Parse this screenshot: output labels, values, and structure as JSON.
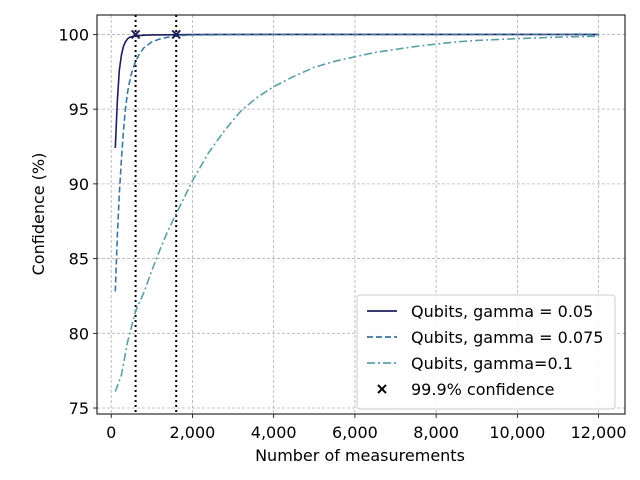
{
  "chart_data": {
    "type": "line",
    "xlabel": "Number of measurements",
    "ylabel": "Confidence (%)",
    "xlim": [
      -350,
      12650
    ],
    "ylim": [
      74.6,
      101.3
    ],
    "xticks": [
      0,
      2000,
      4000,
      6000,
      8000,
      10000,
      12000
    ],
    "xtick_labels": [
      "0",
      "2,000",
      "4,000",
      "6,000",
      "8,000",
      "10,000",
      "12,000"
    ],
    "yticks": [
      75,
      80,
      85,
      90,
      95,
      100
    ],
    "ytick_labels": [
      "75",
      "80",
      "85",
      "90",
      "95",
      "100"
    ],
    "grid": true,
    "legend_position": "lower-right",
    "series": [
      {
        "name": "Qubits, gamma = 0.05",
        "color": "#1f1e5c",
        "style": "solid",
        "x": [
          100,
          150,
          200,
          250,
          300,
          350,
          400,
          450,
          500,
          600,
          800,
          1000,
          2000,
          4000,
          8000,
          12000
        ],
        "y": [
          92.4,
          95.5,
          97.6,
          98.6,
          99.2,
          99.5,
          99.7,
          99.8,
          99.85,
          99.9,
          99.95,
          99.97,
          99.99,
          100,
          100,
          100
        ]
      },
      {
        "name": "Qubits, gamma = 0.075",
        "color": "#3a76a0",
        "style": "dashed",
        "x": [
          100,
          150,
          200,
          250,
          300,
          350,
          400,
          450,
          500,
          600,
          700,
          800,
          900,
          1000,
          1200,
          1400,
          1600,
          1800,
          2000,
          3000,
          5000,
          8000,
          12000
        ],
        "y": [
          82.8,
          86.5,
          89.3,
          91.6,
          93.5,
          95.0,
          96.1,
          96.8,
          97.4,
          98.2,
          98.7,
          99.1,
          99.3,
          99.5,
          99.7,
          99.82,
          99.9,
          99.94,
          99.96,
          99.99,
          100,
          100,
          100
        ]
      },
      {
        "name": "Qubits, gamma=0.1",
        "color": "#5b9ea6",
        "style": "dashdot",
        "x": [
          100,
          250,
          400,
          600,
          800,
          1000,
          1200,
          1400,
          1600,
          1800,
          2000,
          2400,
          2800,
          3200,
          3600,
          4000,
          4500,
          5000,
          5500,
          6000,
          6500,
          7000,
          7500,
          8000,
          8500,
          9000,
          10000,
          11000,
          12000
        ],
        "y": [
          76.1,
          77.2,
          79.4,
          81.5,
          82.7,
          84.2,
          85.6,
          86.9,
          88.0,
          89.1,
          90.2,
          92.1,
          93.6,
          94.9,
          95.8,
          96.5,
          97.2,
          97.8,
          98.2,
          98.5,
          98.8,
          99.0,
          99.2,
          99.35,
          99.5,
          99.6,
          99.72,
          99.82,
          99.88
        ]
      }
    ],
    "markers": {
      "name": "99.9% confidence",
      "symbol": "x",
      "color": "#1f1e5c",
      "points": [
        {
          "x": 600,
          "y": 100
        },
        {
          "x": 1600,
          "y": 100
        }
      ]
    },
    "vlines": [
      600,
      1600
    ]
  }
}
